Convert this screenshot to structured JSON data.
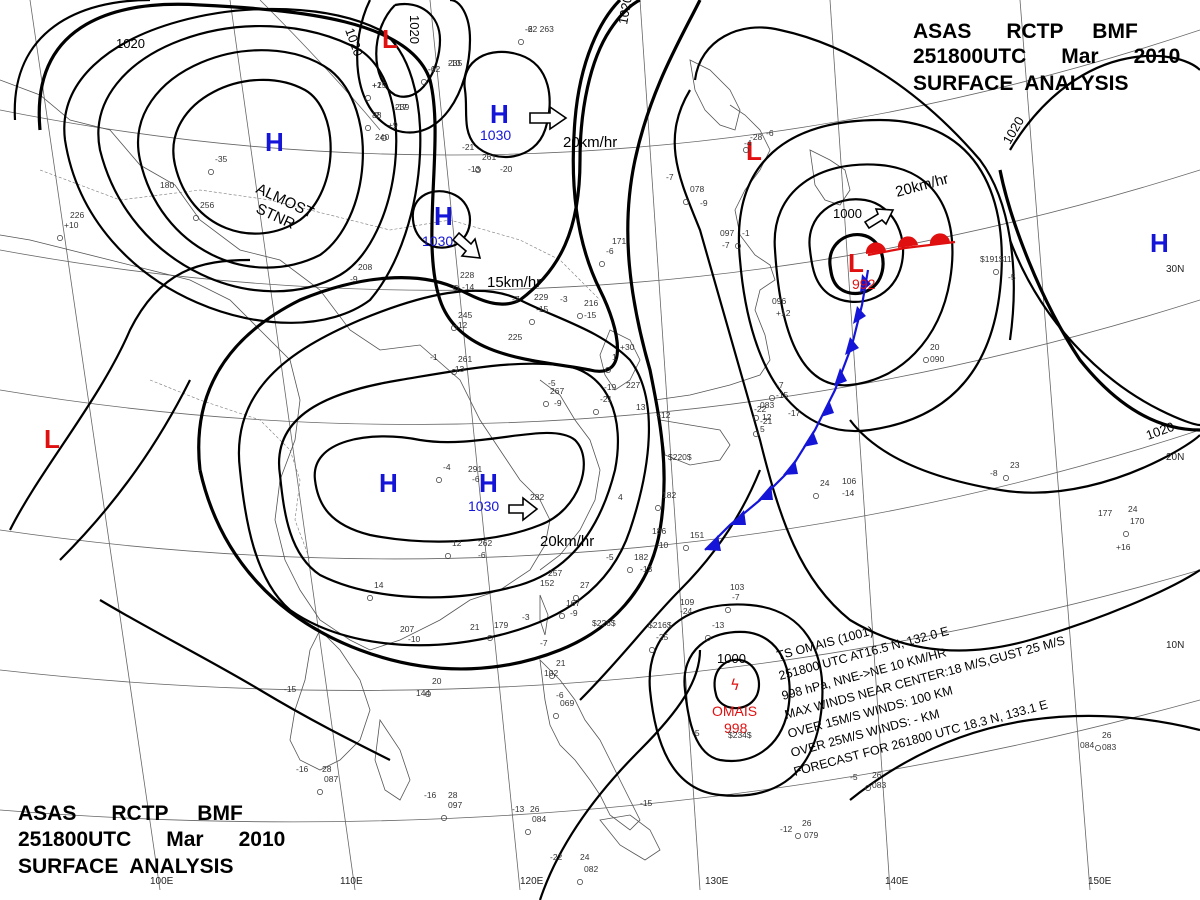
{
  "header_top": {
    "line1": "ASAS      RCTP     BMF",
    "line2": "251800UTC      Mar      2010",
    "line3": "SURFACE  ANALYSIS"
  },
  "header_bottom": {
    "line1": "ASAS      RCTP     BMF",
    "line2": "251800UTC      Mar      2010",
    "line3": "SURFACE  ANALYSIS"
  },
  "colors": {
    "high": "#1515d8",
    "low": "#e01010",
    "front": "#1515d8",
    "warm_front": "#e01010",
    "isobar": "#000000"
  },
  "pressure_centers": [
    {
      "type": "H",
      "value": ""
    },
    {
      "type": "H",
      "value": "1030"
    },
    {
      "type": "H",
      "value": "1030"
    },
    {
      "type": "H",
      "value": ""
    },
    {
      "type": "H",
      "value": "1030"
    },
    {
      "type": "L",
      "value": ""
    },
    {
      "type": "L",
      "value": ""
    },
    {
      "type": "L",
      "value": "992"
    },
    {
      "type": "H",
      "value": ""
    },
    {
      "type": "L",
      "value": ""
    }
  ],
  "isobar_labels": [
    "1020",
    "1020",
    "1020",
    "1020",
    "1020",
    "1000",
    "1020",
    "1000"
  ],
  "almost_stnr": [
    "ALMOST",
    "STNR"
  ],
  "motion_labels": [
    "20km/hr",
    "15km/hr",
    "20km/hr",
    "20km/hr"
  ],
  "lat_labels": [
    "30N",
    "20N",
    "10N"
  ],
  "lon_labels": [
    "110E",
    "120E",
    "130E",
    "140E",
    "150E"
  ],
  "lon_label_first": "100E",
  "typhoon": {
    "symbol": "ϟ",
    "name": "OMAIS",
    "pressure": "998",
    "info": [
      "TS OMAIS (1001)",
      "251800 UTC  AT16.5 N, 132.0 E",
      "998 hPa, NNE->NE  10 KM/HR",
      "MAX WINDS NEAR CENTER:18 M/S,GUST 25 M/S",
      "OVER 15M/S WINDS: 100 KM",
      "OVER 25M/S WINDS: - KM",
      "FORECAST FOR 261800 UTC 18.3 N, 133.1 E"
    ]
  },
  "stations": [
    "-22 263",
    "235",
    "-12",
    "+2",
    "239",
    "38",
    "+9",
    "240",
    "-21",
    "261",
    "-20",
    "-13",
    "-35",
    "180",
    "226",
    "+10",
    "208",
    "-9",
    "228",
    "-14",
    "229",
    "-15",
    "-7",
    "-3",
    "216",
    "-15",
    "225",
    "245",
    "-12",
    "-1",
    "261",
    "-13",
    "-5",
    "267",
    "-9",
    "282",
    "-4",
    "291",
    "-6",
    "12",
    "262",
    "-6",
    "14",
    "207",
    "-10",
    "179",
    "-3",
    "21",
    "167",
    "-9",
    "4",
    "182",
    "186",
    "-10",
    "151",
    "109",
    "-24",
    "-25",
    "$216$",
    "103",
    "-7",
    "$226$",
    "-5",
    "182",
    "-13",
    "-7",
    "078",
    "-9",
    "171",
    "-6",
    "097",
    "-7",
    "-1",
    "096",
    "+12",
    "083",
    "-17",
    "-22",
    "-21",
    "5",
    "12",
    "24",
    "106",
    "-14",
    "20",
    "090",
    "-8",
    "23",
    "177",
    "24",
    "170",
    "+16",
    "$191$",
    "-11",
    "-5",
    "-7",
    "21",
    "102",
    "-6",
    "069",
    "-16",
    "28",
    "087",
    "-16",
    "28",
    "097",
    "-13",
    "26",
    "084",
    "-22",
    "24",
    "082",
    "-15",
    "084",
    "26",
    "083",
    "-12",
    "26",
    "079",
    "-5",
    "26",
    "083",
    "-15",
    "20",
    "144",
    "-5",
    "-13",
    "$234$",
    "$220$",
    "27",
    "257",
    "152",
    "-28",
    "-6",
    "-4",
    "256",
    "-19",
    "227",
    "-21",
    "13",
    "+12",
    "-7",
    "-15",
    "+30",
    "1",
    "-6",
    "-10",
    "-6",
    "+15",
    "-17",
    "-2"
  ]
}
